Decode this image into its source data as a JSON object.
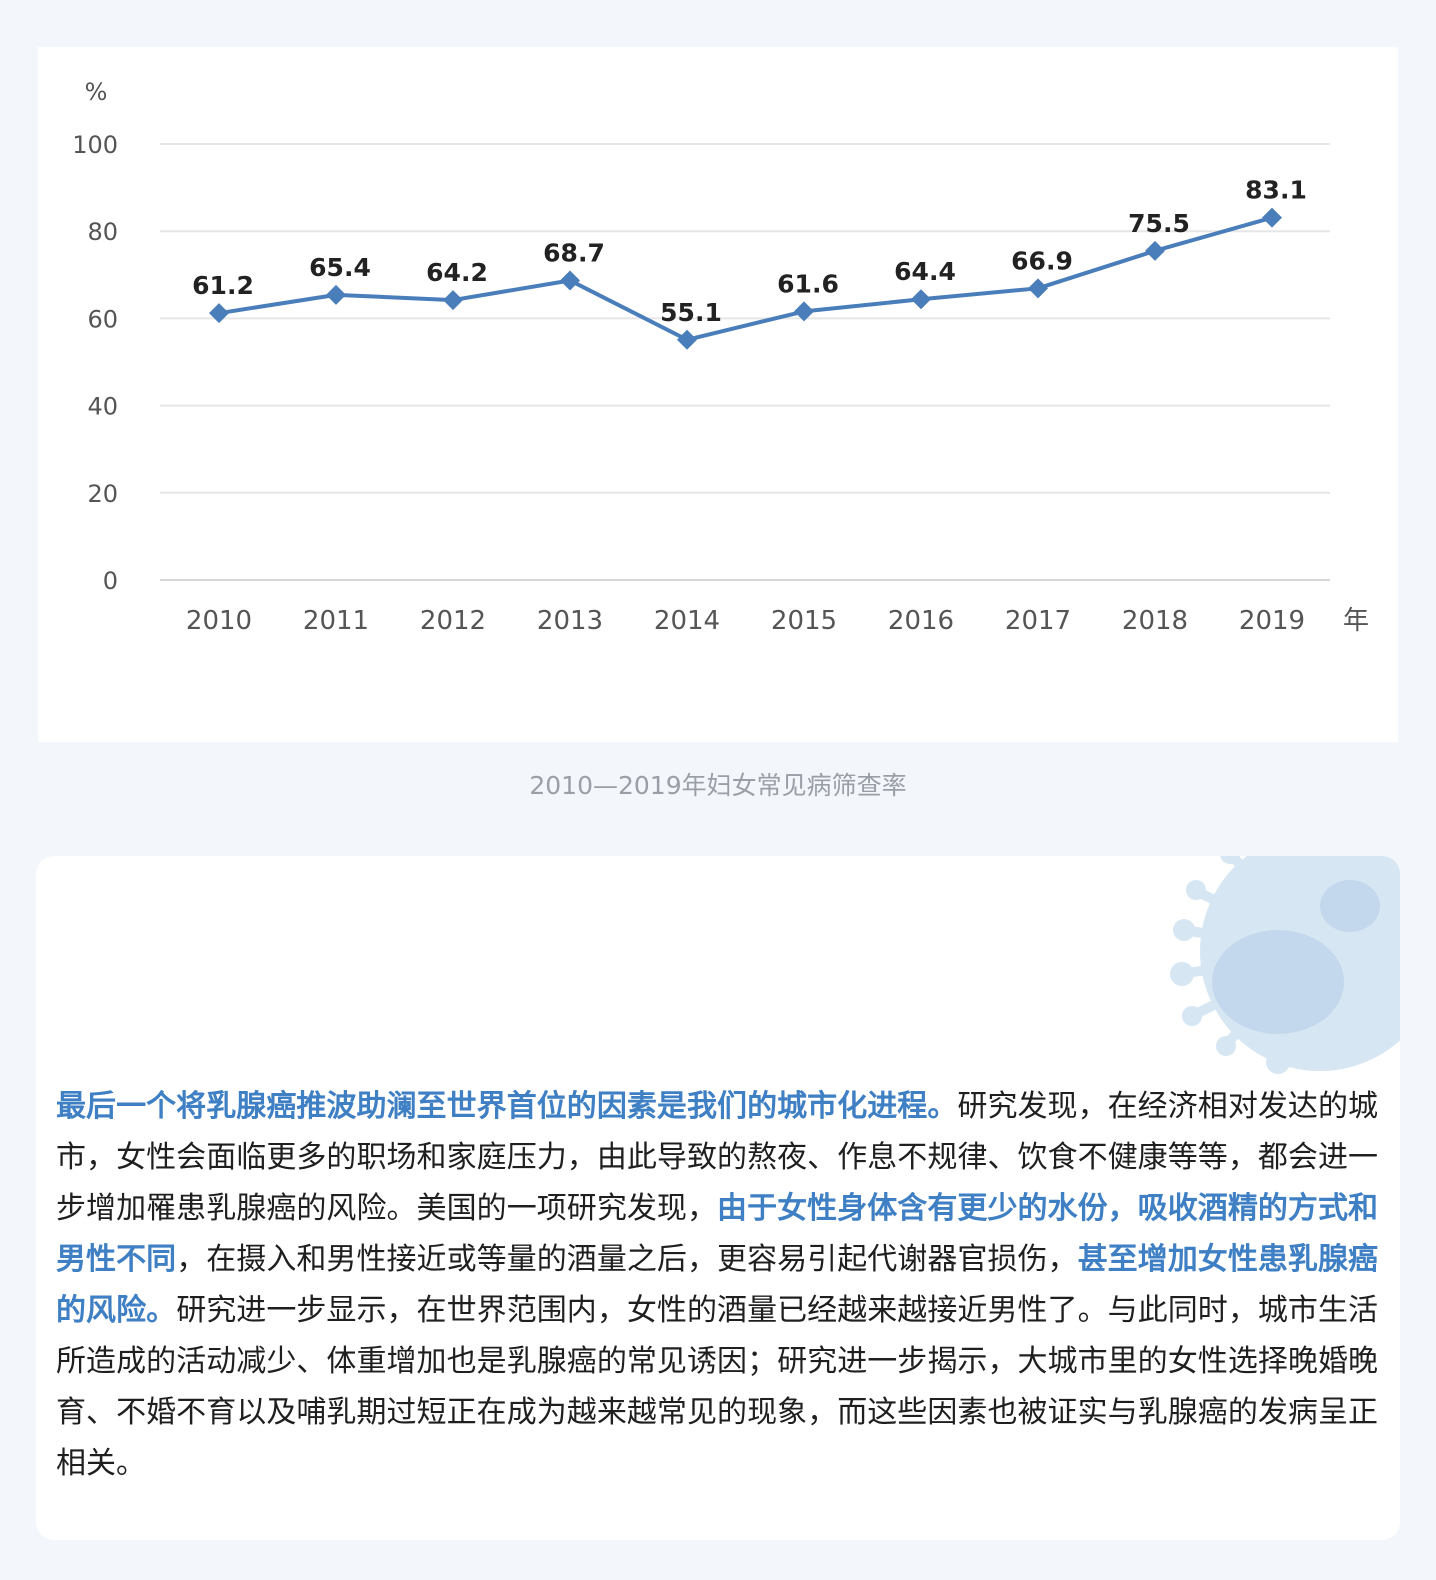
{
  "chart_data": {
    "type": "line",
    "ylabel": "%",
    "xlabel": "年",
    "ylim": [
      0,
      100
    ],
    "yticks": [
      0,
      20,
      40,
      60,
      80,
      100
    ],
    "categories": [
      "2010",
      "2011",
      "2012",
      "2013",
      "2014",
      "2015",
      "2016",
      "2017",
      "2018",
      "2019"
    ],
    "values": [
      61.2,
      65.4,
      64.2,
      68.7,
      55.1,
      61.6,
      64.4,
      66.9,
      75.5,
      83.1
    ],
    "data_labels": [
      "61.2",
      "65.4",
      "64.2",
      "68.7",
      "55.1",
      "61.6",
      "64.4",
      "66.9",
      "75.5",
      "83.1"
    ],
    "grid": true,
    "line_color": "#4a7ebb"
  },
  "caption": "2010—2019年妇女常见病筛查率",
  "article": {
    "segments": [
      {
        "text": "最后一个将乳腺癌推波助澜至世界首位的因素是我们的城市化进程。",
        "highlight": true
      },
      {
        "text": "研究发现，在经济相对发达的城市，女性会面临更多的职场和家庭压力，由此导致的熬夜、作息不规律、饮食不健康等等，都会进一步增加罹患乳腺癌的风险。美国的一项研究发现，",
        "highlight": false
      },
      {
        "text": "由于女性身体含有更少的水份，吸收酒精的方式和男性不同",
        "highlight": true
      },
      {
        "text": "，在摄入和男性接近或等量的酒量之后，更容易引起代谢器官损伤，",
        "highlight": false
      },
      {
        "text": "甚至增加女性患乳腺癌的风险。",
        "highlight": true
      },
      {
        "text": "研究进一步显示，在世界范围内，女性的酒量已经越来越接近男性了。与此同时，城市生活所造成的活动减少、体重增加也是乳腺癌的常见诱因；研究进一步揭示，大城市里的女性选择晚婚晚育、不婚不育以及哺乳期过短正在成为越来越常见的现象，而这些因素也被证实与乳腺癌的发病呈正相关。",
        "highlight": false
      }
    ]
  },
  "colors": {
    "highlight": "#3f7fc4",
    "virus": "#d6e6f3"
  },
  "icons": {
    "decoration": "virus-icon"
  }
}
